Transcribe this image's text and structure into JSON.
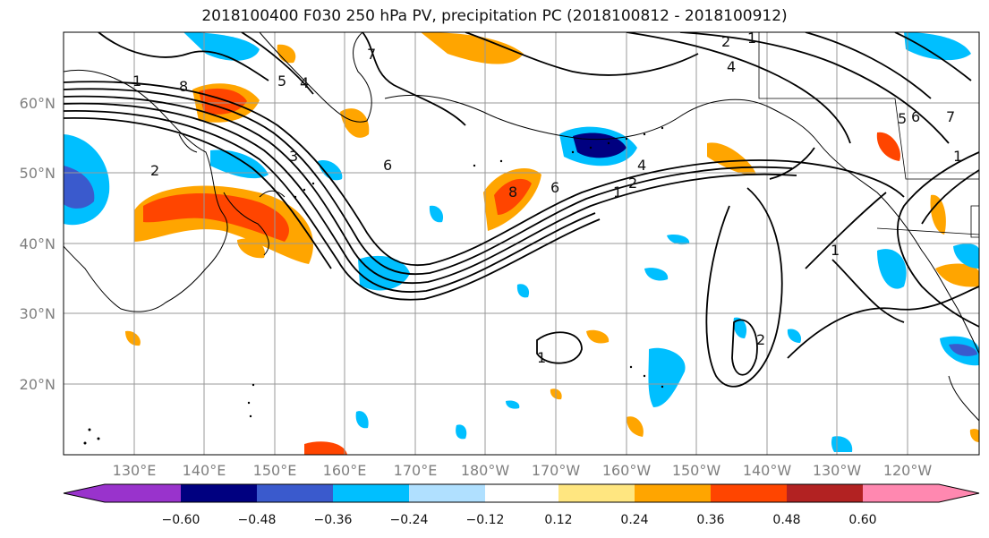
{
  "title": "2018100400 F030 250 hPa PV, precipitation PC (2018100812 - 2018100912)",
  "map": {
    "lat_labels": [
      "60°N",
      "50°N",
      "40°N",
      "30°N",
      "20°N"
    ],
    "lon_labels": [
      "130°E",
      "140°E",
      "150°E",
      "160°E",
      "170°E",
      "180°W",
      "170°W",
      "160°W",
      "150°W",
      "140°W",
      "130°W",
      "120°W"
    ]
  },
  "colorbar": {
    "colors": [
      "#9933cc",
      "#000080",
      "#3a5acd",
      "#00bfff",
      "#b0e0ff",
      "#ffffff",
      "#ffe680",
      "#ffa500",
      "#ff4500",
      "#b22222",
      "#ff88b0"
    ],
    "ticks": [
      "−0.60",
      "−0.48",
      "−0.36",
      "−0.24",
      "−0.12",
      "0.12",
      "0.24",
      "0.36",
      "0.48",
      "0.60"
    ]
  },
  "contour_labels": [
    "1",
    "2",
    "3",
    "4",
    "5",
    "6",
    "7",
    "8",
    "1",
    "2",
    "4",
    "6",
    "8",
    "1",
    "2",
    "4",
    "1",
    "1",
    "2",
    "1",
    "5",
    "6",
    "7"
  ]
}
